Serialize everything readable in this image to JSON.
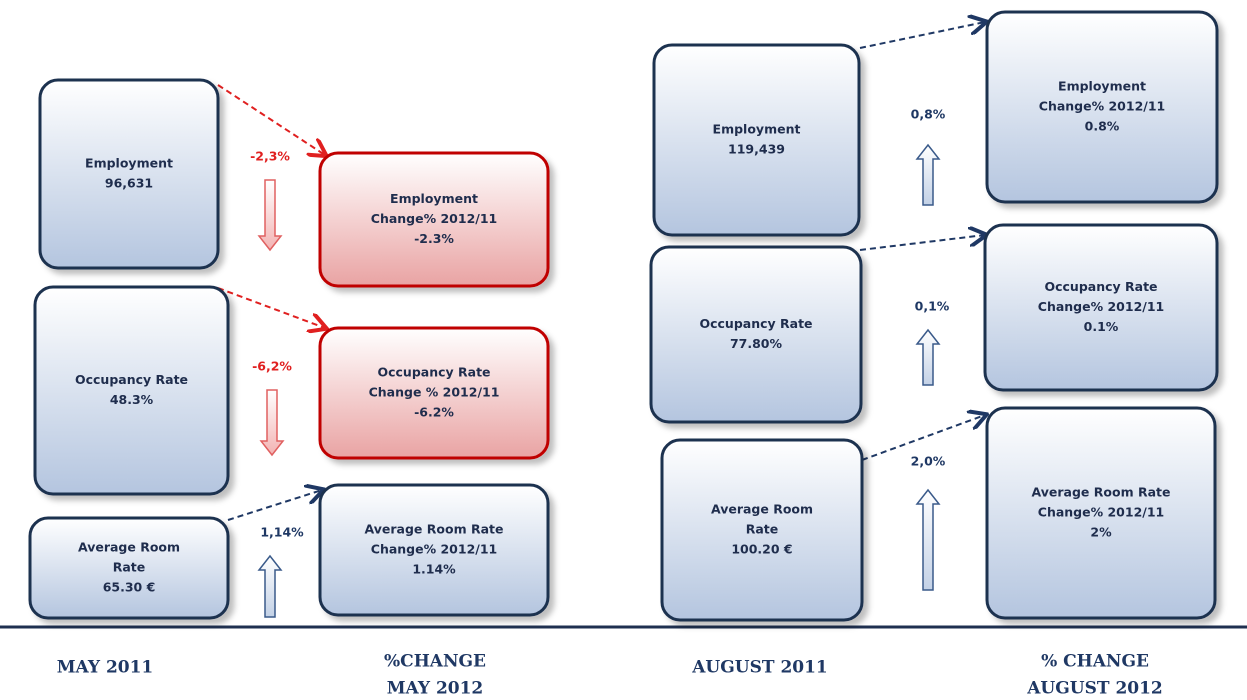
{
  "panels": [
    {
      "base_label": [
        "MAY 2011"
      ],
      "base_boxes": [
        [
          "Employment",
          "96,631"
        ],
        [
          "Occupancy Rate",
          "48.3%"
        ],
        [
          "Average Room",
          "Rate",
          "65.30 €"
        ]
      ],
      "changes": [
        "-2,3%",
        "-6,2%",
        "1,14%"
      ],
      "change_label": [
        "%CHANGE",
        "MAY 2012"
      ],
      "change_boxes": [
        [
          "Employment",
          "Change% 2012/11",
          "-2.3%"
        ],
        [
          "Occupancy Rate",
          "Change % 2012/11",
          "-6.2%"
        ],
        [
          "Average Room Rate",
          "Change% 2012/11",
          "1.14%"
        ]
      ]
    },
    {
      "base_label": [
        "AUGUST 2011"
      ],
      "base_boxes": [
        [
          "Employment",
          "119,439"
        ],
        [
          "Occupancy Rate",
          "77.80%"
        ],
        [
          "Average Room",
          "Rate",
          "100.20 €"
        ]
      ],
      "changes": [
        "0,8%",
        "0,1%",
        "2,0%"
      ],
      "change_label": [
        "% CHANGE",
        "AUGUST 2012"
      ],
      "change_boxes": [
        [
          "Employment",
          "Change% 2012/11",
          "0.8%"
        ],
        [
          "Occupancy Rate",
          "Change% 2012/11",
          "0.1%"
        ],
        [
          "Average Room Rate",
          "Change% 2012/11",
          "2%"
        ]
      ]
    }
  ]
}
